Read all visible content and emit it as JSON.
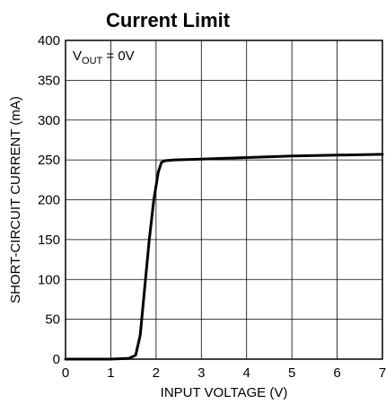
{
  "chart_data": {
    "type": "line",
    "title": "Current Limit",
    "xlabel": "INPUT VOLTAGE (V)",
    "ylabel": "SHORT-CIRCUIT CURRENT (mA)",
    "xlim": [
      0,
      7
    ],
    "ylim": [
      0,
      400
    ],
    "xticks": [
      "0",
      "1",
      "2",
      "3",
      "4",
      "5",
      "6",
      "7"
    ],
    "yticks": [
      "0",
      "50",
      "100",
      "150",
      "200",
      "250",
      "300",
      "350",
      "400"
    ],
    "grid": true,
    "annotation": {
      "main": "V",
      "sub": "OUT",
      "rest": " = 0V"
    },
    "series": [
      {
        "color": "#000000",
        "x": [
          0,
          0.5,
          1.0,
          1.4,
          1.55,
          1.65,
          1.75,
          1.85,
          1.95,
          2.05,
          2.12,
          2.2,
          2.4,
          3.0,
          4.0,
          5.0,
          6.0,
          7.0
        ],
        "y": [
          0,
          0,
          0,
          1,
          5,
          30,
          90,
          150,
          200,
          235,
          247,
          249,
          250,
          251,
          253,
          255,
          256,
          257
        ]
      }
    ]
  }
}
